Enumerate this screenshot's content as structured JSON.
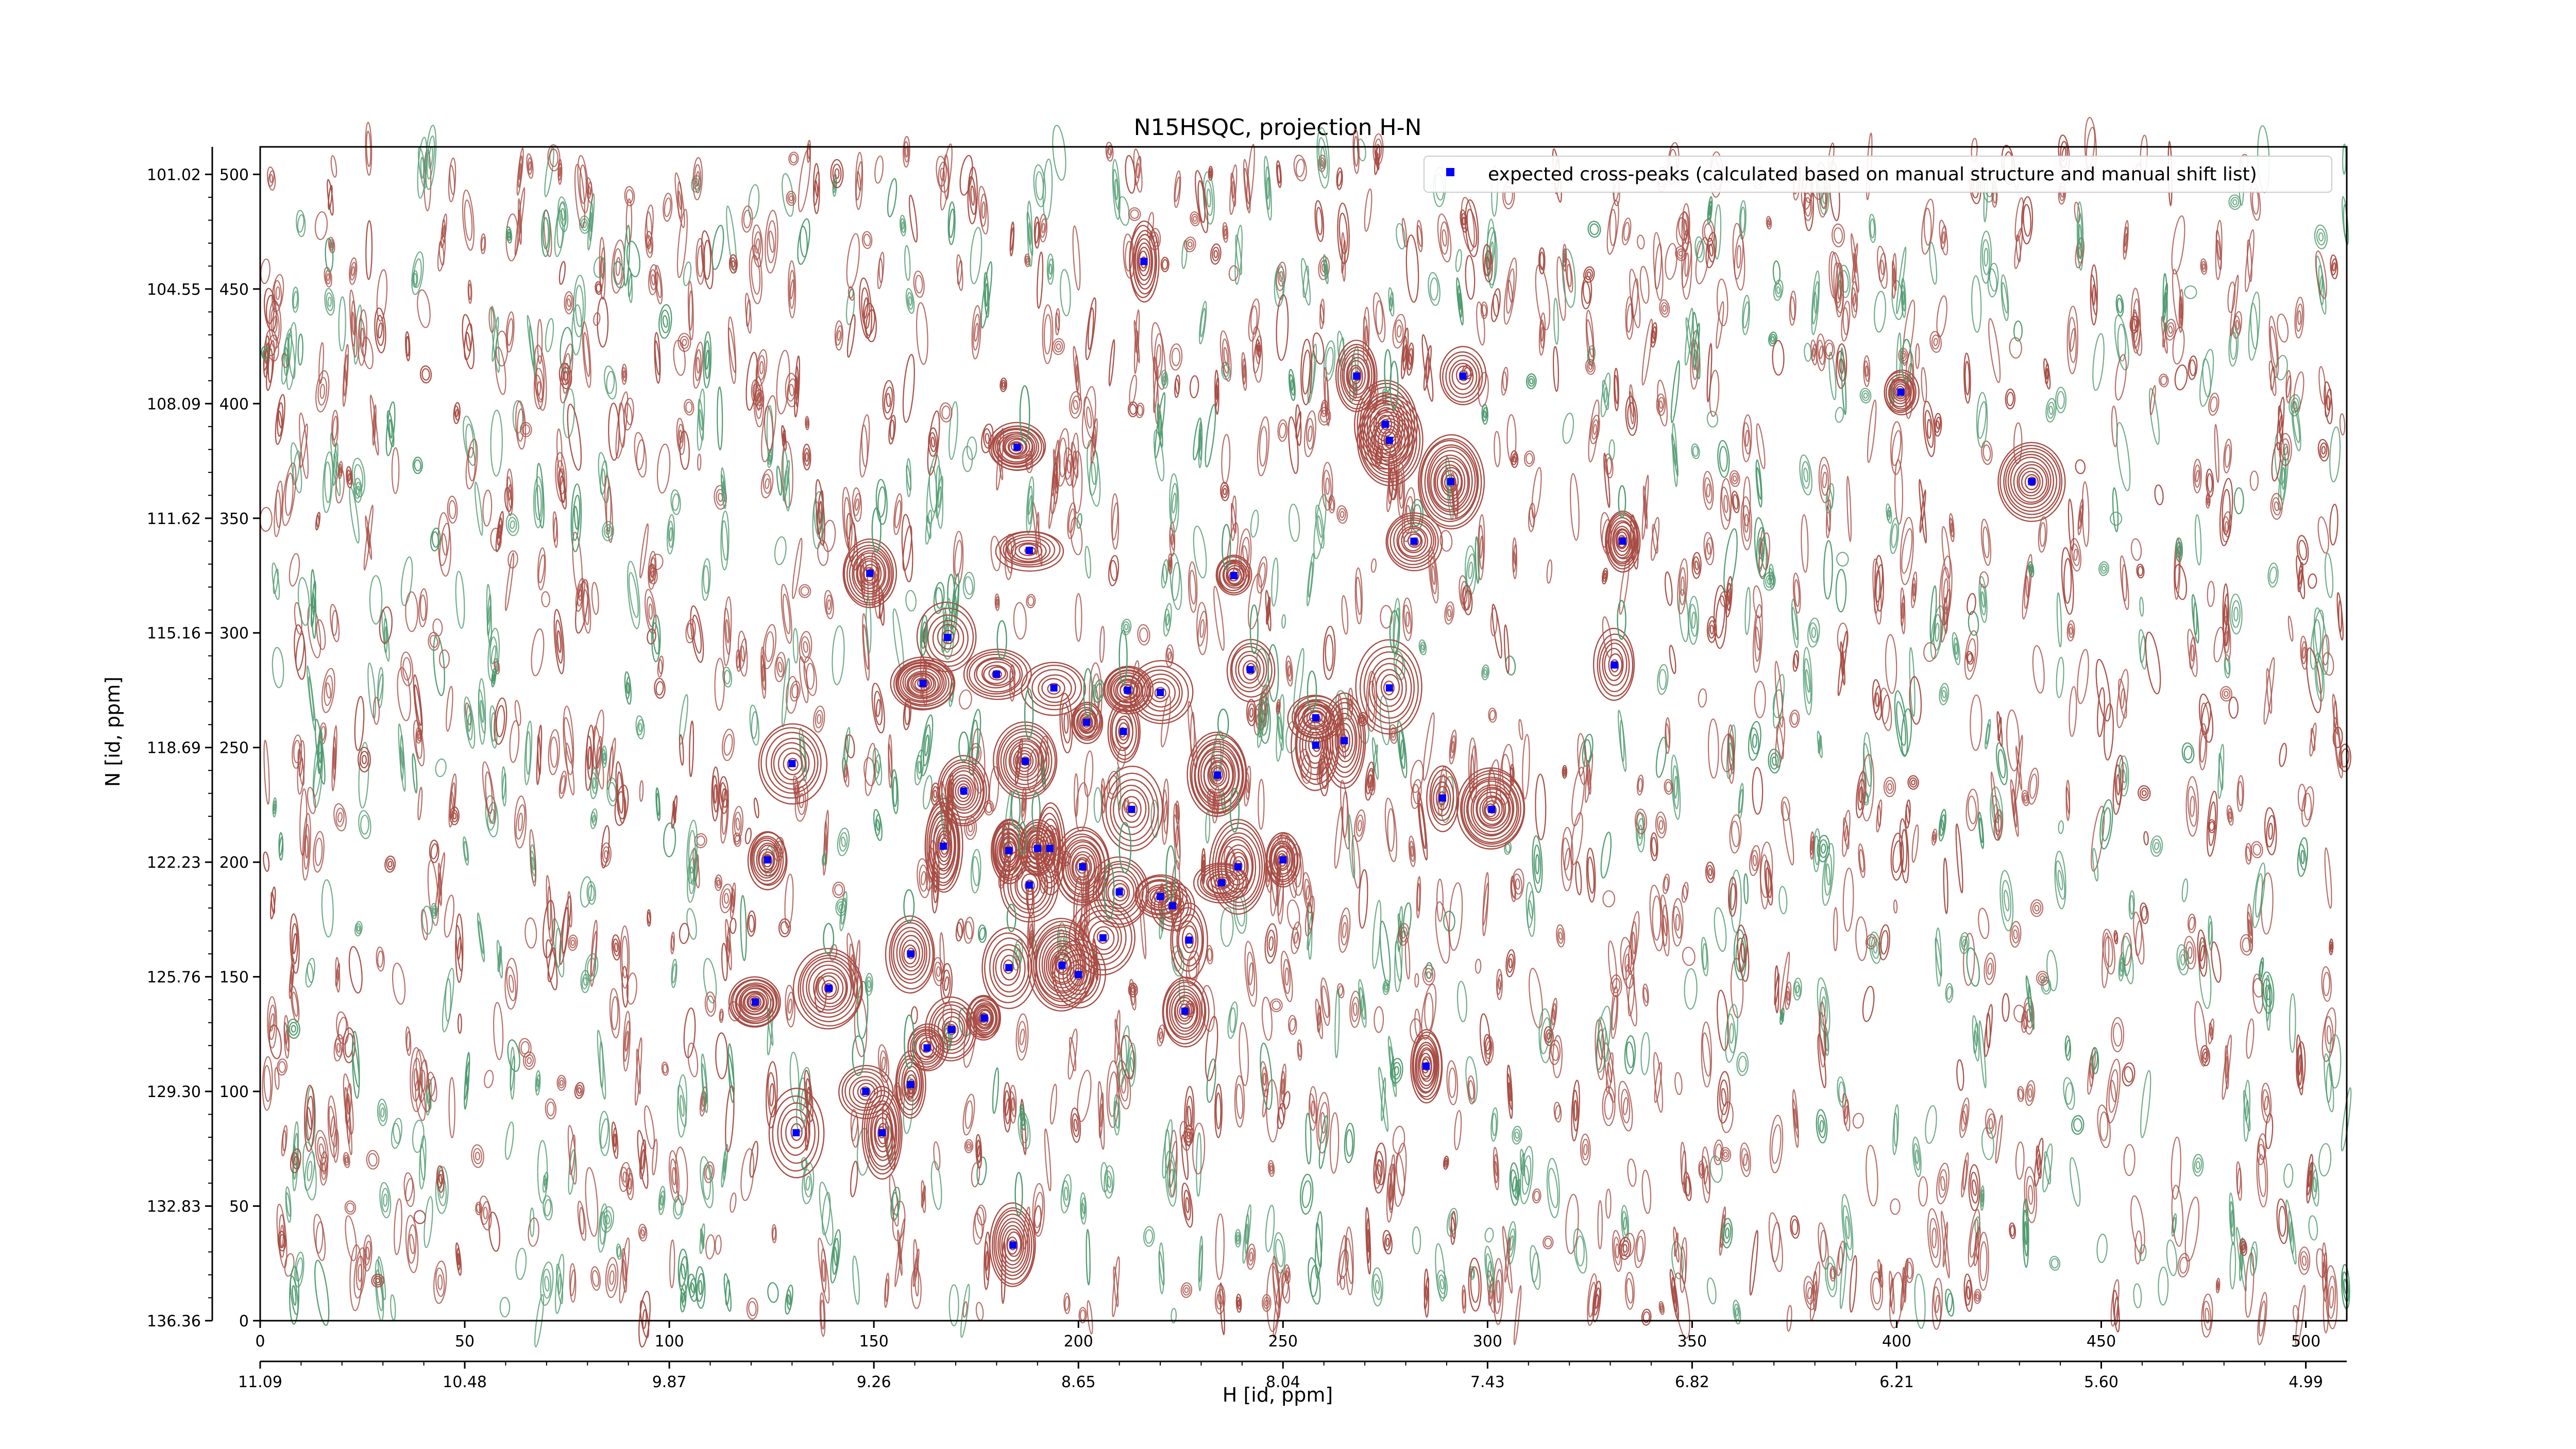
{
  "chart_data": {
    "type": "scatter",
    "title": "N15HSQC, projection H-N",
    "xlabel": "H [id, ppm]",
    "ylabel": "N [id, ppm]",
    "x_index_range": [
      0,
      510
    ],
    "y_index_range": [
      0,
      512
    ],
    "x_index_ticks": [
      "0",
      "50",
      "100",
      "150",
      "200",
      "250",
      "300",
      "350",
      "400",
      "450",
      "500"
    ],
    "x_ppm_ticks": [
      "11.09",
      "10.48",
      "9.87",
      "9.26",
      "8.65",
      "8.04",
      "7.43",
      "6.82",
      "6.21",
      "5.60",
      "4.99"
    ],
    "y_index_ticks": [
      "0",
      "50",
      "100",
      "150",
      "200",
      "250",
      "300",
      "350",
      "400",
      "450",
      "500"
    ],
    "y_ppm_ticks": [
      "136.36",
      "132.83",
      "129.30",
      "125.76",
      "122.23",
      "118.69",
      "115.16",
      "111.62",
      "108.09",
      "104.55",
      "101.02"
    ],
    "legend": {
      "placement": "top-right",
      "label": "expected cross-peaks (calculated based on manual structure and manual shift list)",
      "marker_color": "#0000ff"
    },
    "colors": {
      "positive_contours": "#a84c44",
      "negative_contours": "#4e9a6e",
      "peaks": "#0000ff"
    },
    "series": [
      {
        "name": "expected cross-peaks (calculated based on manual structure and manual shift list)",
        "points": [
          [
            216,
            462
          ],
          [
            185,
            381
          ],
          [
            268,
            412
          ],
          [
            294,
            412
          ],
          [
            275,
            391
          ],
          [
            276,
            384
          ],
          [
            291,
            366
          ],
          [
            433,
            366
          ],
          [
            401,
            405
          ],
          [
            282,
            340
          ],
          [
            333,
            340
          ],
          [
            188,
            336
          ],
          [
            149,
            326
          ],
          [
            238,
            325
          ],
          [
            168,
            298
          ],
          [
            242,
            284
          ],
          [
            331,
            286
          ],
          [
            180,
            282
          ],
          [
            162,
            278
          ],
          [
            194,
            276
          ],
          [
            212,
            275
          ],
          [
            220,
            274
          ],
          [
            276,
            276
          ],
          [
            202,
            261
          ],
          [
            211,
            257
          ],
          [
            258,
            263
          ],
          [
            258,
            251
          ],
          [
            265,
            253
          ],
          [
            130,
            243
          ],
          [
            187,
            244
          ],
          [
            234,
            238
          ],
          [
            172,
            231
          ],
          [
            289,
            228
          ],
          [
            301,
            223
          ],
          [
            213,
            223
          ],
          [
            167,
            207
          ],
          [
            183,
            205
          ],
          [
            190,
            206
          ],
          [
            193,
            206
          ],
          [
            124,
            201
          ],
          [
            201,
            198
          ],
          [
            250,
            201
          ],
          [
            239,
            198
          ],
          [
            188,
            190
          ],
          [
            235,
            191
          ],
          [
            210,
            187
          ],
          [
            220,
            185
          ],
          [
            223,
            181
          ],
          [
            227,
            166
          ],
          [
            206,
            167
          ],
          [
            159,
            160
          ],
          [
            183,
            154
          ],
          [
            196,
            155
          ],
          [
            200,
            151
          ],
          [
            121,
            139
          ],
          [
            139,
            145
          ],
          [
            226,
            135
          ],
          [
            177,
            132
          ],
          [
            169,
            127
          ],
          [
            163,
            119
          ],
          [
            285,
            111
          ],
          [
            148,
            100
          ],
          [
            159,
            103
          ],
          [
            131,
            82
          ],
          [
            152,
            82
          ],
          [
            184,
            33
          ]
        ]
      }
    ]
  }
}
